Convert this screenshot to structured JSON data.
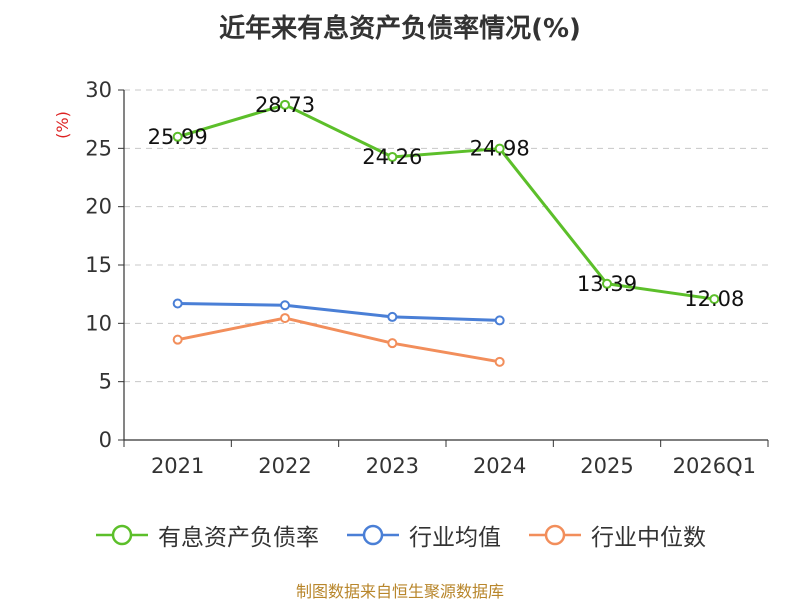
{
  "chart_data": {
    "type": "line",
    "title": "近年来有息资产负债率情况(%)",
    "ylabel": "(%)",
    "xlabel": "",
    "categories": [
      "2021",
      "2022",
      "2023",
      "2024",
      "2025",
      "2026Q1"
    ],
    "ylim": [
      0,
      30
    ],
    "yticks": [
      0,
      5,
      10,
      15,
      20,
      25,
      30
    ],
    "grid": true,
    "legend_position": "bottom",
    "series": [
      {
        "name": "有息资产负债率",
        "color": "#5cbf2a",
        "values": [
          25.99,
          28.73,
          24.26,
          24.98,
          13.39,
          12.08
        ],
        "labels": [
          "25.99",
          "28.73",
          "24.26",
          "24.98",
          "13.39",
          "12.08"
        ]
      },
      {
        "name": "行业均值",
        "color": "#4a7fd6",
        "values": [
          11.7,
          11.55,
          10.55,
          10.25,
          null,
          null
        ]
      },
      {
        "name": "行业中位数",
        "color": "#f28e5b",
        "values": [
          8.6,
          10.45,
          8.3,
          6.7,
          null,
          null
        ]
      }
    ]
  },
  "source": "制图数据来自恒生聚源数据库"
}
